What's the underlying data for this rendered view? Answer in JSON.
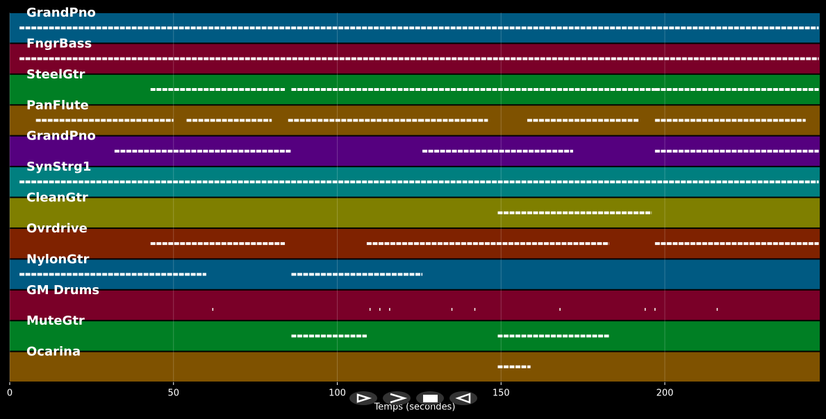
{
  "chart_data": {
    "type": "pianoroll",
    "xlabel": "Temps (secondes)",
    "xlim": [
      0,
      247.3
    ],
    "xticks": [
      0,
      50,
      100,
      150,
      200
    ],
    "grid": true,
    "tracks": [
      {
        "name": "GrandPno",
        "color": "#005a82",
        "segments": [
          [
            3,
            247
          ]
        ]
      },
      {
        "name": "FngrBass",
        "color": "#7a0028",
        "segments": [
          [
            3,
            43
          ],
          [
            43,
            247
          ]
        ]
      },
      {
        "name": "SteelGtr",
        "color": "#007f24",
        "segments": [
          [
            43,
            84
          ],
          [
            86,
            197
          ],
          [
            197,
            247
          ]
        ]
      },
      {
        "name": "PanFlute",
        "color": "#7f5200",
        "segments": [
          [
            8,
            50
          ],
          [
            54,
            80
          ],
          [
            85,
            125
          ],
          [
            125,
            146
          ],
          [
            158,
            192
          ],
          [
            197,
            243
          ]
        ]
      },
      {
        "name": "GrandPno",
        "color": "#55007f",
        "segments": [
          [
            32,
            86
          ],
          [
            126,
            172
          ],
          [
            197,
            247
          ]
        ]
      },
      {
        "name": "SynStrg1",
        "color": "#007f7f",
        "segments": [
          [
            3,
            247
          ]
        ]
      },
      {
        "name": "CleanGtr",
        "color": "#7f7f00",
        "segments": [
          [
            149,
            196
          ]
        ]
      },
      {
        "name": "Ovrdrive",
        "color": "#7f2200",
        "segments": [
          [
            43,
            84
          ],
          [
            109,
            183
          ],
          [
            197,
            247
          ]
        ]
      },
      {
        "name": "NylonGtr",
        "color": "#005a82",
        "segments": [
          [
            3,
            60
          ],
          [
            86,
            126
          ]
        ]
      },
      {
        "name": "GM Drums",
        "color": "#7a0028",
        "hits": [
          62,
          110,
          113,
          116,
          135,
          142,
          168,
          194,
          197,
          216
        ]
      },
      {
        "name": "MuteGtr",
        "color": "#007f24",
        "segments": [
          [
            86,
            109
          ],
          [
            149,
            183
          ]
        ]
      },
      {
        "name": "Ocarina",
        "color": "#7f5200",
        "segments": [
          [
            149,
            159
          ]
        ]
      }
    ]
  }
}
